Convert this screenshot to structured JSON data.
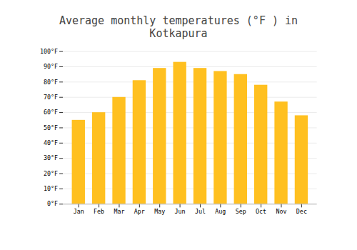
{
  "chart_data": {
    "type": "bar",
    "title": "Average monthly temperatures (°F ) in Kotkapura",
    "categories": [
      "Jan",
      "Feb",
      "Mar",
      "Apr",
      "May",
      "Jun",
      "Jul",
      "Aug",
      "Sep",
      "Oct",
      "Nov",
      "Dec"
    ],
    "values": [
      55,
      60,
      70,
      81,
      89,
      93,
      89,
      87,
      85,
      78,
      67,
      58
    ],
    "color": "#FFC020",
    "ylim": [
      0,
      100
    ],
    "yticks": [
      {
        "value": 0,
        "label": "0°F"
      },
      {
        "value": 10,
        "label": "10°F"
      },
      {
        "value": 20,
        "label": "20°F"
      },
      {
        "value": 30,
        "label": "30°F"
      },
      {
        "value": 40,
        "label": "40°F"
      },
      {
        "value": 50,
        "label": "50°F"
      },
      {
        "value": 60,
        "label": "60°F"
      },
      {
        "value": 70,
        "label": "70°F"
      },
      {
        "value": 80,
        "label": "80°F"
      },
      {
        "value": 90,
        "label": "90°F"
      },
      {
        "value": 100,
        "label": "100°F"
      }
    ],
    "grid": true
  }
}
